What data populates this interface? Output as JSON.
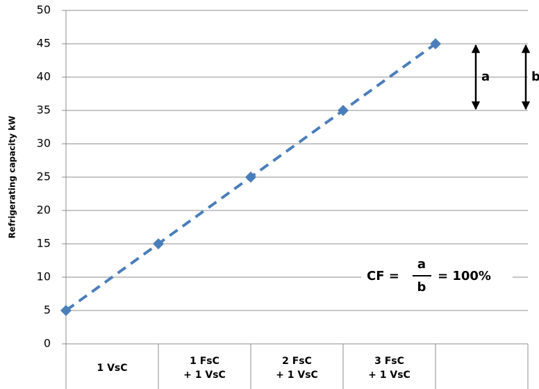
{
  "chart_data": {
    "type": "line",
    "y_label": "Refrigerating capacity kW",
    "categories": [
      [
        "1 VsC"
      ],
      [
        "1 FsC",
        "+ 1 VsC"
      ],
      [
        "2 FsC",
        "+ 1 VsC"
      ],
      [
        "3 FsC",
        "+ 1 VsC"
      ],
      null
    ],
    "values": [
      5,
      15,
      25,
      35,
      45
    ],
    "color": "#4a7ebb",
    "line_style": "dashed",
    "marker": "diamond",
    "ylim": [
      0,
      50
    ],
    "yticks": [
      0,
      5,
      10,
      15,
      20,
      25,
      30,
      35,
      40,
      45,
      50
    ],
    "grid": true,
    "annotations": {
      "a": "a",
      "b": "b",
      "formula": {
        "lhs": "CF =",
        "numerator": "a",
        "denominator": "b",
        "rhs": "= 100%"
      }
    }
  }
}
